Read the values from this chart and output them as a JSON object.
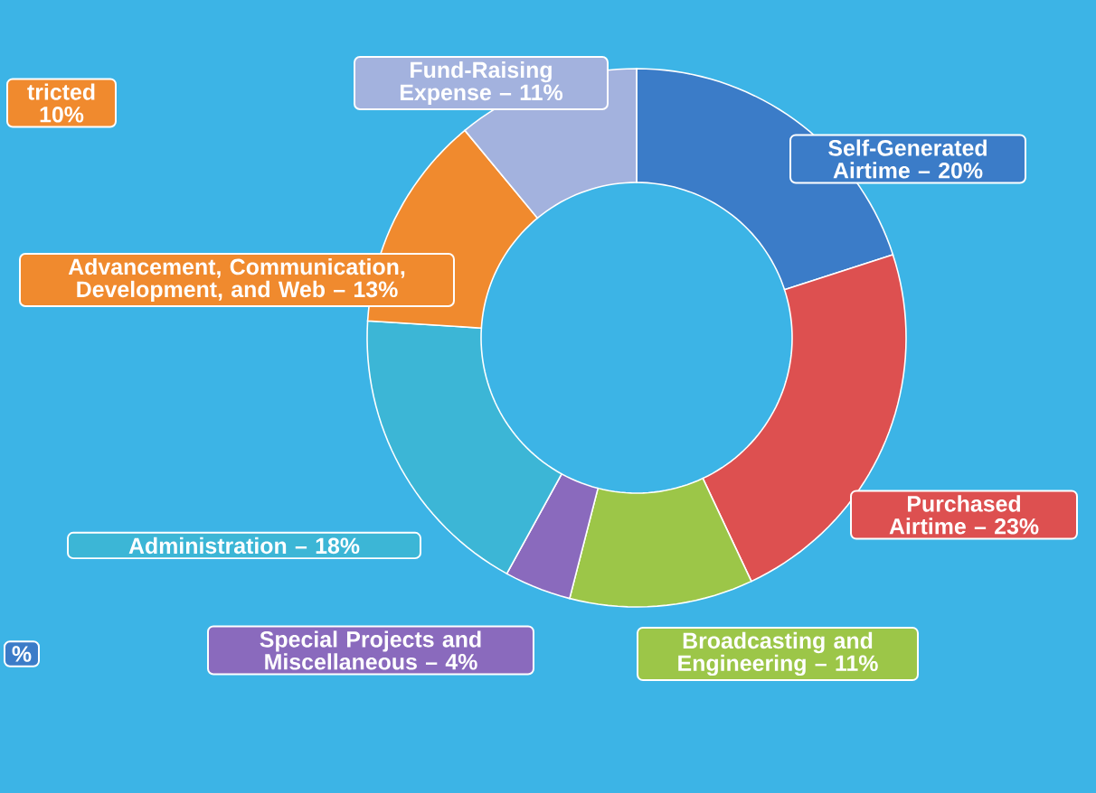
{
  "chart_data": {
    "type": "donut",
    "categories": [
      "Self-Generated Airtime –",
      "Purchased Airtime –",
      "Broadcasting and Engineering –",
      "Special Projects and Miscellaneous –",
      "Administration –",
      "Advancement, Communication, Development, and Web –",
      "Fund-Raising Expense –"
    ],
    "values": [
      20,
      23,
      11,
      4,
      18,
      13,
      11
    ],
    "value_labels": [
      "20%",
      "23%",
      "11%",
      "4%",
      "18%",
      "13%",
      "11%"
    ],
    "colors": [
      "#3b7cc8",
      "#dd5050",
      "#9cc648",
      "#8a6abd",
      "#3cb6d6",
      "#f08a2e",
      "#a3b2de"
    ],
    "annotations": [
      "tricted 10%",
      "%"
    ]
  }
}
